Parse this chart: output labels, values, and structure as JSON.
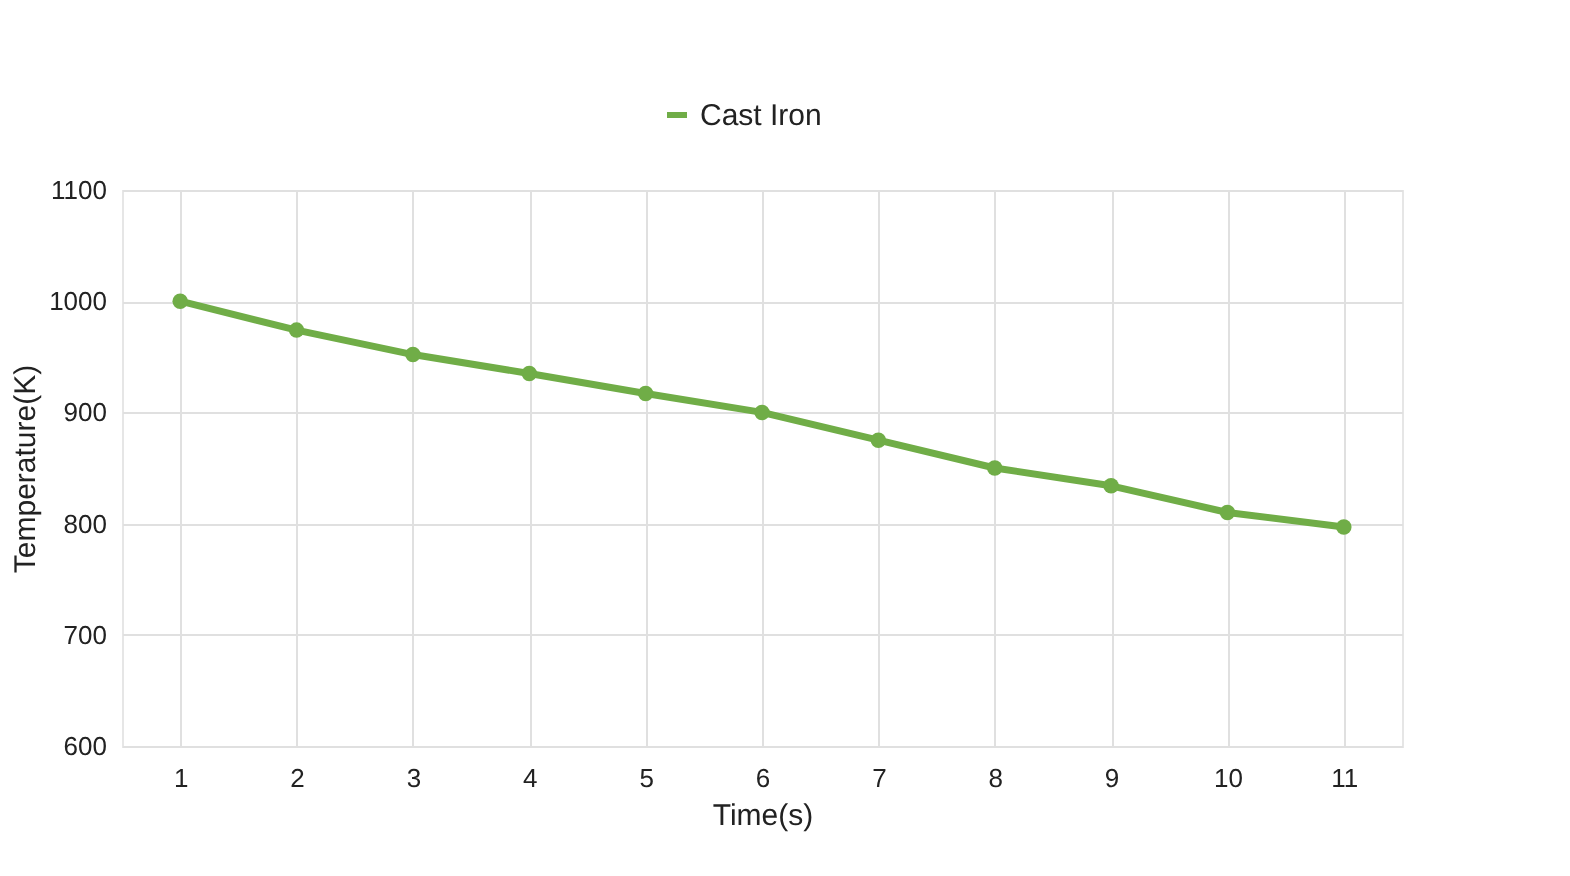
{
  "chart_data": {
    "type": "line",
    "xlabel": "Time(s)",
    "ylabel": "Temperature(K)",
    "categories": [
      "1",
      "2",
      "3",
      "4",
      "5",
      "6",
      "7",
      "8",
      "9",
      "10",
      "11"
    ],
    "series": [
      {
        "name": "Cast Iron",
        "color": "#70ad47",
        "values": [
          1000,
          974,
          952,
          935,
          917,
          900,
          875,
          850,
          834,
          810,
          797
        ]
      }
    ],
    "ylim": [
      600,
      1100
    ],
    "yticks": [
      600,
      700,
      800,
      900,
      1000,
      1100
    ],
    "grid": true,
    "legend": "top",
    "marker": "circle",
    "line_style": "solid"
  }
}
